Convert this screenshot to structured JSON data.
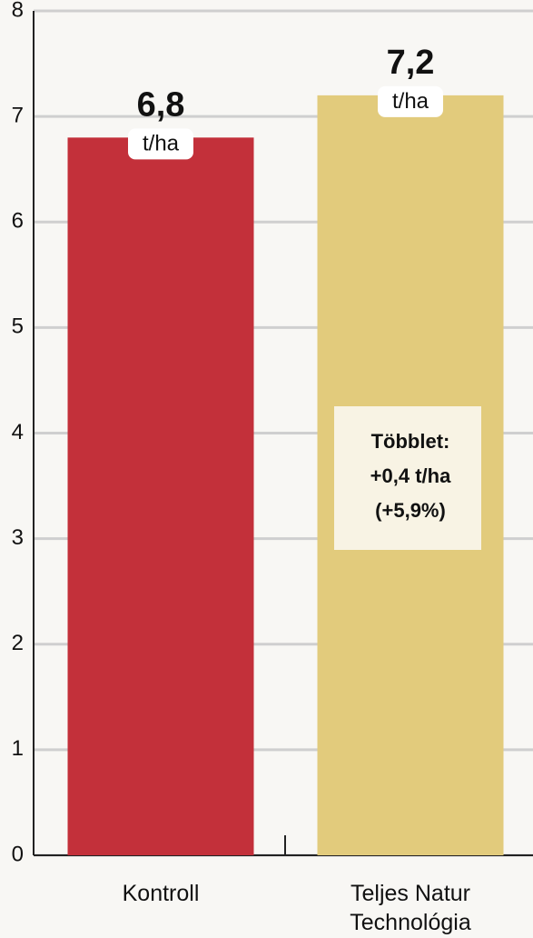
{
  "chart_data": {
    "type": "bar",
    "categories": [
      "Kontroll",
      "Teljes Natur Technológia"
    ],
    "values": [
      6.8,
      7.2
    ],
    "value_labels": [
      "6,8",
      "7,2"
    ],
    "value_unit": "t/ha",
    "colors": [
      "#c3303a",
      "#e2cb7c"
    ],
    "ylim": [
      0,
      8
    ],
    "yticks": [
      0,
      1,
      2,
      3,
      4,
      5,
      6,
      7,
      8
    ],
    "grid": true,
    "annotation": [
      "Többlet:",
      "+0,4 t/ha",
      "(+5,9%)"
    ]
  }
}
